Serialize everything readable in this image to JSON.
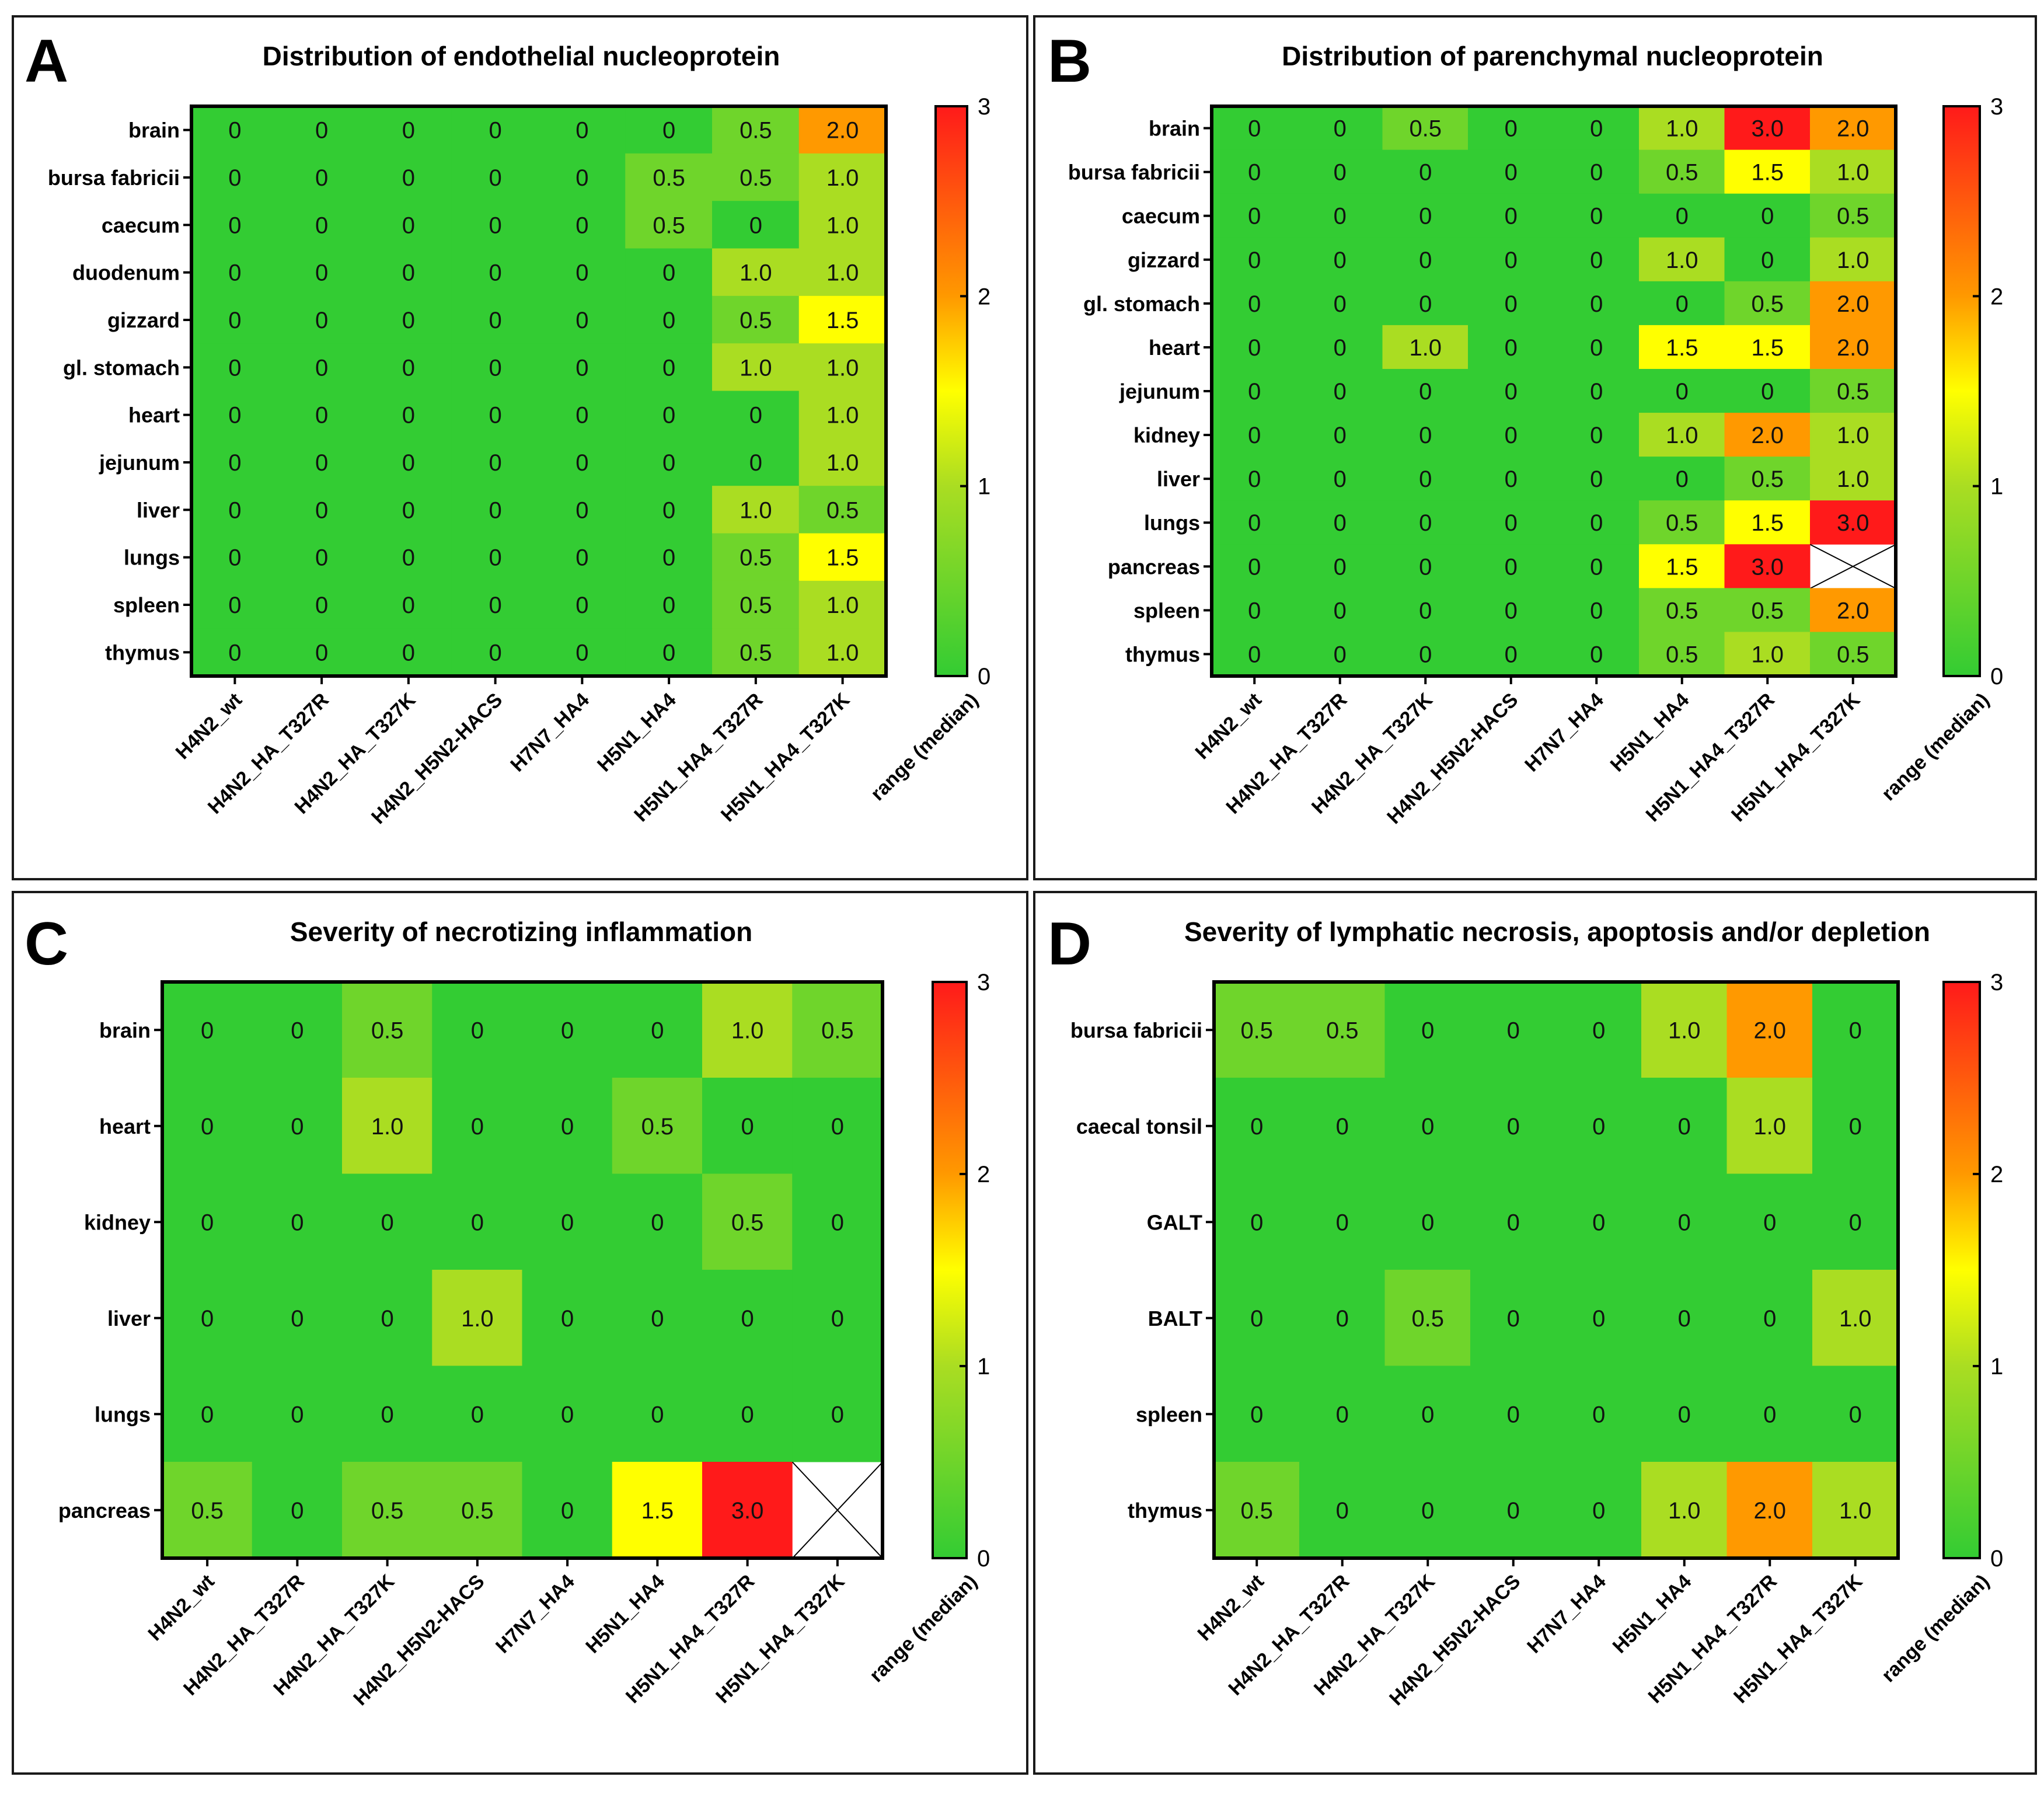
{
  "colors": {
    "low": "#33cc33",
    "mid": "#ffff00",
    "mid_low": "#aadd22",
    "high_mid": "#ff9900",
    "high": "#ff1a1a",
    "missing": "#ffffff"
  },
  "chart_data": [
    {
      "panel": "A",
      "type": "heatmap",
      "title": "Distribution of endothelial nucleoprotein",
      "rows": [
        "brain",
        "bursa fabricii",
        "caecum",
        "duodenum",
        "gizzard",
        "gl. stomach",
        "heart",
        "jejunum",
        "liver",
        "lungs",
        "spleen",
        "thymus"
      ],
      "columns": [
        "H4N2_wt",
        "H4N2_HA_T327R",
        "H4N2_HA_T327K",
        "H4N2_H5N2-HACS",
        "H7N7_HA4",
        "H5N1_HA4",
        "H5N1_HA4_T327R",
        "H5N1_HA4_T327K"
      ],
      "values": [
        [
          0,
          0,
          0,
          0,
          0,
          0,
          0.5,
          2.0
        ],
        [
          0,
          0,
          0,
          0,
          0,
          0.5,
          0.5,
          1.0
        ],
        [
          0,
          0,
          0,
          0,
          0,
          0.5,
          0,
          1.0
        ],
        [
          0,
          0,
          0,
          0,
          0,
          0,
          1.0,
          1.0
        ],
        [
          0,
          0,
          0,
          0,
          0,
          0,
          0.5,
          1.5
        ],
        [
          0,
          0,
          0,
          0,
          0,
          0,
          1.0,
          1.0
        ],
        [
          0,
          0,
          0,
          0,
          0,
          0,
          0,
          1.0
        ],
        [
          0,
          0,
          0,
          0,
          0,
          0,
          0,
          1.0
        ],
        [
          0,
          0,
          0,
          0,
          0,
          0,
          1.0,
          0.5
        ],
        [
          0,
          0,
          0,
          0,
          0,
          0,
          0.5,
          1.5
        ],
        [
          0,
          0,
          0,
          0,
          0,
          0,
          0.5,
          1.0
        ],
        [
          0,
          0,
          0,
          0,
          0,
          0,
          0.5,
          1.0
        ]
      ],
      "labels": [
        [
          "0",
          "0",
          "0",
          "0",
          "0",
          "0",
          "0.5",
          "2.0"
        ],
        [
          "0",
          "0",
          "0",
          "0",
          "0",
          "0.5",
          "0.5",
          "1.0"
        ],
        [
          "0",
          "0",
          "0",
          "0",
          "0",
          "0.5",
          "0",
          "1.0"
        ],
        [
          "0",
          "0",
          "0",
          "0",
          "0",
          "0",
          "1.0",
          "1.0"
        ],
        [
          "0",
          "0",
          "0",
          "0",
          "0",
          "0",
          "0.5",
          "1.5"
        ],
        [
          "0",
          "0",
          "0",
          "0",
          "0",
          "0",
          "1.0",
          "1.0"
        ],
        [
          "0",
          "0",
          "0",
          "0",
          "0",
          "0",
          "0",
          "1.0"
        ],
        [
          "0",
          "0",
          "0",
          "0",
          "0",
          "0",
          "0",
          "1.0"
        ],
        [
          "0",
          "0",
          "0",
          "0",
          "0",
          "0",
          "1.0",
          "0.5"
        ],
        [
          "0",
          "0",
          "0",
          "0",
          "0",
          "0",
          "0.5",
          "1.5"
        ],
        [
          "0",
          "0",
          "0",
          "0",
          "0",
          "0",
          "0.5",
          "1.0"
        ],
        [
          "0",
          "0",
          "0",
          "0",
          "0",
          "0",
          "0.5",
          "1.0"
        ]
      ],
      "colorbar": {
        "label": "range (median)",
        "range": [
          0,
          3
        ],
        "ticks": [
          "0",
          "1",
          "2",
          "3"
        ]
      }
    },
    {
      "panel": "B",
      "type": "heatmap",
      "title": "Distribution of parenchymal nucleoprotein",
      "rows": [
        "brain",
        "bursa fabricii",
        "caecum",
        "gizzard",
        "gl. stomach",
        "heart",
        "jejunum",
        "kidney",
        "liver",
        "lungs",
        "pancreas",
        "spleen",
        "thymus"
      ],
      "columns": [
        "H4N2_wt",
        "H4N2_HA_T327R",
        "H4N2_HA_T327K",
        "H4N2_H5N2-HACS",
        "H7N7_HA4",
        "H5N1_HA4",
        "H5N1_HA4_T327R",
        "H5N1_HA4_T327K"
      ],
      "values": [
        [
          0,
          0,
          0.5,
          0,
          0,
          1.0,
          3.0,
          2.0
        ],
        [
          0,
          0,
          0,
          0,
          0,
          0.5,
          1.5,
          1.0
        ],
        [
          0,
          0,
          0,
          0,
          0,
          0,
          0,
          0.5
        ],
        [
          0,
          0,
          0,
          0,
          0,
          1.0,
          0,
          1.0
        ],
        [
          0,
          0,
          0,
          0,
          0,
          0,
          0.5,
          2.0
        ],
        [
          0,
          0,
          1.0,
          0,
          0,
          1.5,
          1.5,
          2.0
        ],
        [
          0,
          0,
          0,
          0,
          0,
          0,
          0,
          0.5
        ],
        [
          0,
          0,
          0,
          0,
          0,
          1.0,
          2.0,
          1.0
        ],
        [
          0,
          0,
          0,
          0,
          0,
          0,
          0.5,
          1.0
        ],
        [
          0,
          0,
          0,
          0,
          0,
          0.5,
          1.5,
          3.0
        ],
        [
          0,
          0,
          0,
          0,
          0,
          1.5,
          3.0,
          null
        ],
        [
          0,
          0,
          0,
          0,
          0,
          0.5,
          0.5,
          2.0
        ],
        [
          0,
          0,
          0,
          0,
          0,
          0.5,
          1.0,
          0.5
        ]
      ],
      "labels": [
        [
          "0",
          "0",
          "0.5",
          "0",
          "0",
          "1.0",
          "3.0",
          "2.0"
        ],
        [
          "0",
          "0",
          "0",
          "0",
          "0",
          "0.5",
          "1.5",
          "1.0"
        ],
        [
          "0",
          "0",
          "0",
          "0",
          "0",
          "0",
          "0",
          "0.5"
        ],
        [
          "0",
          "0",
          "0",
          "0",
          "0",
          "1.0",
          "0",
          "1.0"
        ],
        [
          "0",
          "0",
          "0",
          "0",
          "0",
          "0",
          "0.5",
          "2.0"
        ],
        [
          "0",
          "0",
          "1.0",
          "0",
          "0",
          "1.5",
          "1.5",
          "2.0"
        ],
        [
          "0",
          "0",
          "0",
          "0",
          "0",
          "0",
          "0",
          "0.5"
        ],
        [
          "0",
          "0",
          "0",
          "0",
          "0",
          "1.0",
          "2.0",
          "1.0"
        ],
        [
          "0",
          "0",
          "0",
          "0",
          "0",
          "0",
          "0.5",
          "1.0"
        ],
        [
          "0",
          "0",
          "0",
          "0",
          "0",
          "0.5",
          "1.5",
          "3.0"
        ],
        [
          "0",
          "0",
          "0",
          "0",
          "0",
          "1.5",
          "3.0",
          ""
        ],
        [
          "0",
          "0",
          "0",
          "0",
          "0",
          "0.5",
          "0.5",
          "2.0"
        ],
        [
          "0",
          "0",
          "0",
          "0",
          "0",
          "0.5",
          "1.0",
          "0.5"
        ]
      ],
      "colorbar": {
        "label": "range (median)",
        "range": [
          0,
          3
        ],
        "ticks": [
          "0",
          "1",
          "2",
          "3"
        ]
      }
    },
    {
      "panel": "C",
      "type": "heatmap",
      "title": "Severity of necrotizing inflammation",
      "rows": [
        "brain",
        "heart",
        "kidney",
        "liver",
        "lungs",
        "pancreas"
      ],
      "columns": [
        "H4N2_wt",
        "H4N2_HA_T327R",
        "H4N2_HA_T327K",
        "H4N2_H5N2-HACS",
        "H7N7_HA4",
        "H5N1_HA4",
        "H5N1_HA4_T327R",
        "H5N1_HA4_T327K"
      ],
      "values": [
        [
          0,
          0,
          0.5,
          0,
          0,
          0,
          1.0,
          0.5
        ],
        [
          0,
          0,
          1.0,
          0,
          0,
          0.5,
          0,
          0
        ],
        [
          0,
          0,
          0,
          0,
          0,
          0,
          0.5,
          0
        ],
        [
          0,
          0,
          0,
          1.0,
          0,
          0,
          0,
          0
        ],
        [
          0,
          0,
          0,
          0,
          0,
          0,
          0,
          0
        ],
        [
          0.5,
          0,
          0.5,
          0.5,
          0,
          1.5,
          3.0,
          null
        ]
      ],
      "labels": [
        [
          "0",
          "0",
          "0.5",
          "0",
          "0",
          "0",
          "1.0",
          "0.5"
        ],
        [
          "0",
          "0",
          "1.0",
          "0",
          "0",
          "0.5",
          "0",
          "0"
        ],
        [
          "0",
          "0",
          "0",
          "0",
          "0",
          "0",
          "0.5",
          "0"
        ],
        [
          "0",
          "0",
          "0",
          "1.0",
          "0",
          "0",
          "0",
          "0"
        ],
        [
          "0",
          "0",
          "0",
          "0",
          "0",
          "0",
          "0",
          "0"
        ],
        [
          "0.5",
          "0",
          "0.5",
          "0.5",
          "0",
          "1.5",
          "3.0",
          ""
        ]
      ],
      "colorbar": {
        "label": "range (median)",
        "range": [
          0,
          3
        ],
        "ticks": [
          "0",
          "1",
          "2",
          "3"
        ]
      }
    },
    {
      "panel": "D",
      "type": "heatmap",
      "title": "Severity of lymphatic necrosis, apoptosis and/or depletion",
      "rows": [
        "bursa fabricii",
        "caecal tonsil",
        "GALT",
        "BALT",
        "spleen",
        "thymus"
      ],
      "columns": [
        "H4N2_wt",
        "H4N2_HA_T327R",
        "H4N2_HA_T327K",
        "H4N2_H5N2-HACS",
        "H7N7_HA4",
        "H5N1_HA4",
        "H5N1_HA4_T327R",
        "H5N1_HA4_T327K"
      ],
      "values": [
        [
          0.5,
          0.5,
          0,
          0,
          0,
          1.0,
          2.0,
          0
        ],
        [
          0,
          0,
          0,
          0,
          0,
          0,
          1.0,
          0
        ],
        [
          0,
          0,
          0,
          0,
          0,
          0,
          0,
          0
        ],
        [
          0,
          0,
          0.5,
          0,
          0,
          0,
          0,
          1.0
        ],
        [
          0,
          0,
          0,
          0,
          0,
          0,
          0,
          0
        ],
        [
          0.5,
          0,
          0,
          0,
          0,
          1.0,
          2.0,
          1.0
        ]
      ],
      "labels": [
        [
          "0.5",
          "0.5",
          "0",
          "0",
          "0",
          "1.0",
          "2.0",
          "0"
        ],
        [
          "0",
          "0",
          "0",
          "0",
          "0",
          "0",
          "1.0",
          "0"
        ],
        [
          "0",
          "0",
          "0",
          "0",
          "0",
          "0",
          "0",
          "0"
        ],
        [
          "0",
          "0",
          "0.5",
          "0",
          "0",
          "0",
          "0",
          "1.0"
        ],
        [
          "0",
          "0",
          "0",
          "0",
          "0",
          "0",
          "0",
          "0"
        ],
        [
          "0.5",
          "0",
          "0",
          "0",
          "0",
          "1.0",
          "2.0",
          "1.0"
        ]
      ],
      "colorbar": {
        "label": "range (median)",
        "range": [
          0,
          3
        ],
        "ticks": [
          "0",
          "1",
          "2",
          "3"
        ]
      }
    }
  ]
}
